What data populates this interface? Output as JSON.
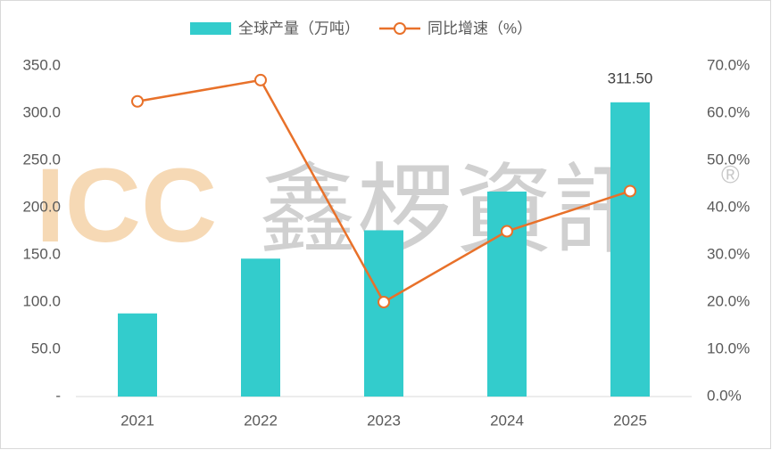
{
  "chart_data": {
    "type": "bar-line",
    "categories": [
      "2021",
      "2022",
      "2023",
      "2024",
      "2025"
    ],
    "series": [
      {
        "name": "全球产量（万吨）",
        "type": "bar",
        "color": "#33cccc",
        "values": [
          88,
          146,
          176,
          217,
          311.5
        ],
        "value_labels": [
          null,
          null,
          null,
          null,
          "311.50"
        ]
      },
      {
        "name": "同比增速（%）",
        "type": "line",
        "axis": "y2",
        "color": "#e8712a",
        "values": [
          62.5,
          67,
          20,
          35,
          43.5
        ]
      }
    ],
    "ylim": [
      0,
      350
    ],
    "yticks": [
      {
        "value": 0,
        "label": "-"
      },
      {
        "value": 50,
        "label": "50.0"
      },
      {
        "value": 100,
        "label": "100.0"
      },
      {
        "value": 150,
        "label": "150.0"
      },
      {
        "value": 200,
        "label": "200.0"
      },
      {
        "value": 250,
        "label": "250.0"
      },
      {
        "value": 300,
        "label": "300.0"
      },
      {
        "value": 350,
        "label": "350.0"
      }
    ],
    "y2lim": [
      0,
      70
    ],
    "y2ticks": [
      {
        "value": 0,
        "label": "0.0%"
      },
      {
        "value": 10,
        "label": "10.0%"
      },
      {
        "value": 20,
        "label": "20.0%"
      },
      {
        "value": 30,
        "label": "30.0%"
      },
      {
        "value": 40,
        "label": "40.0%"
      },
      {
        "value": 50,
        "label": "50.0%"
      },
      {
        "value": 60,
        "label": "60.0%"
      },
      {
        "value": 70,
        "label": "70.0%"
      }
    ],
    "legend": "top",
    "watermark": {
      "logo": "ICC",
      "text": "鑫椤資訊",
      "mark": "®"
    }
  }
}
